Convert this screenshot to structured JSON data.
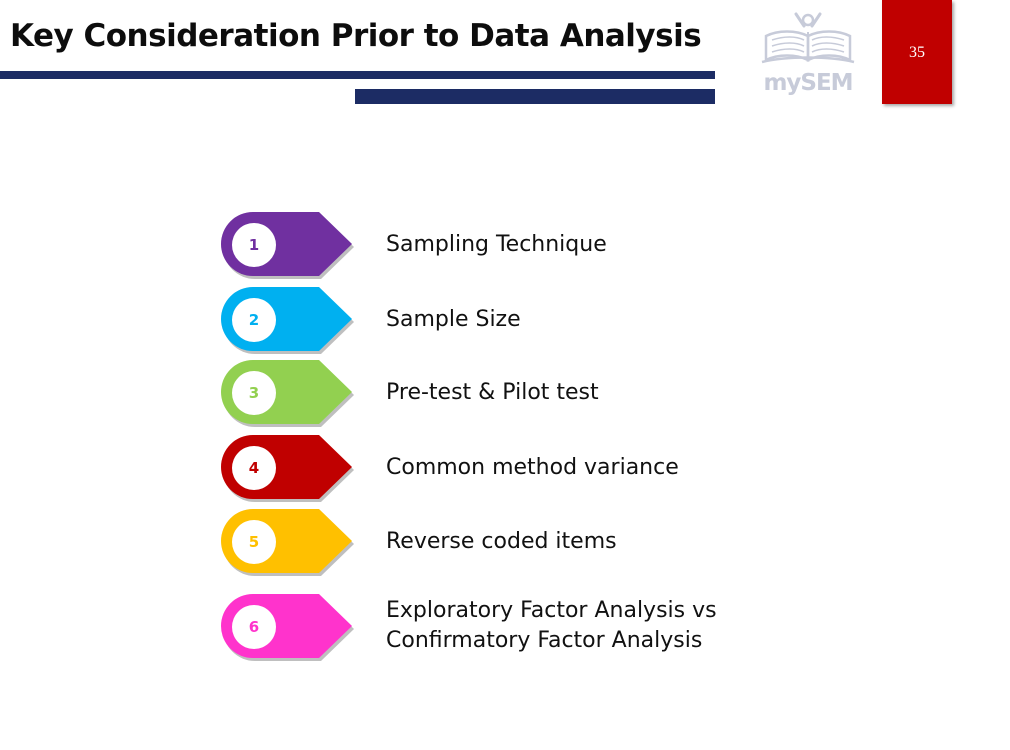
{
  "slide": {
    "title": "Key Consideration Prior to Data Analysis",
    "page_number": "35",
    "logo_text": "mySEM"
  },
  "colors": {
    "header_bar": "#1c2c64",
    "page_box": "#c00000",
    "logo": "#c7cbd9"
  },
  "items": [
    {
      "number": "1",
      "label": "Sampling Technique",
      "color": "#7030a0"
    },
    {
      "number": "2",
      "label": "Sample Size",
      "color": "#00b0f0"
    },
    {
      "number": "3",
      "label": "Pre-test & Pilot test",
      "color": "#92d050"
    },
    {
      "number": "4",
      "label": "Common method variance",
      "color": "#c00000"
    },
    {
      "number": "5",
      "label": "Reverse coded items",
      "color": "#ffc000"
    },
    {
      "number": "6",
      "label": "Exploratory Factor Analysis vs",
      "label_line2": "Confirmatory Factor Analysis",
      "color": "#ff33cc"
    }
  ]
}
